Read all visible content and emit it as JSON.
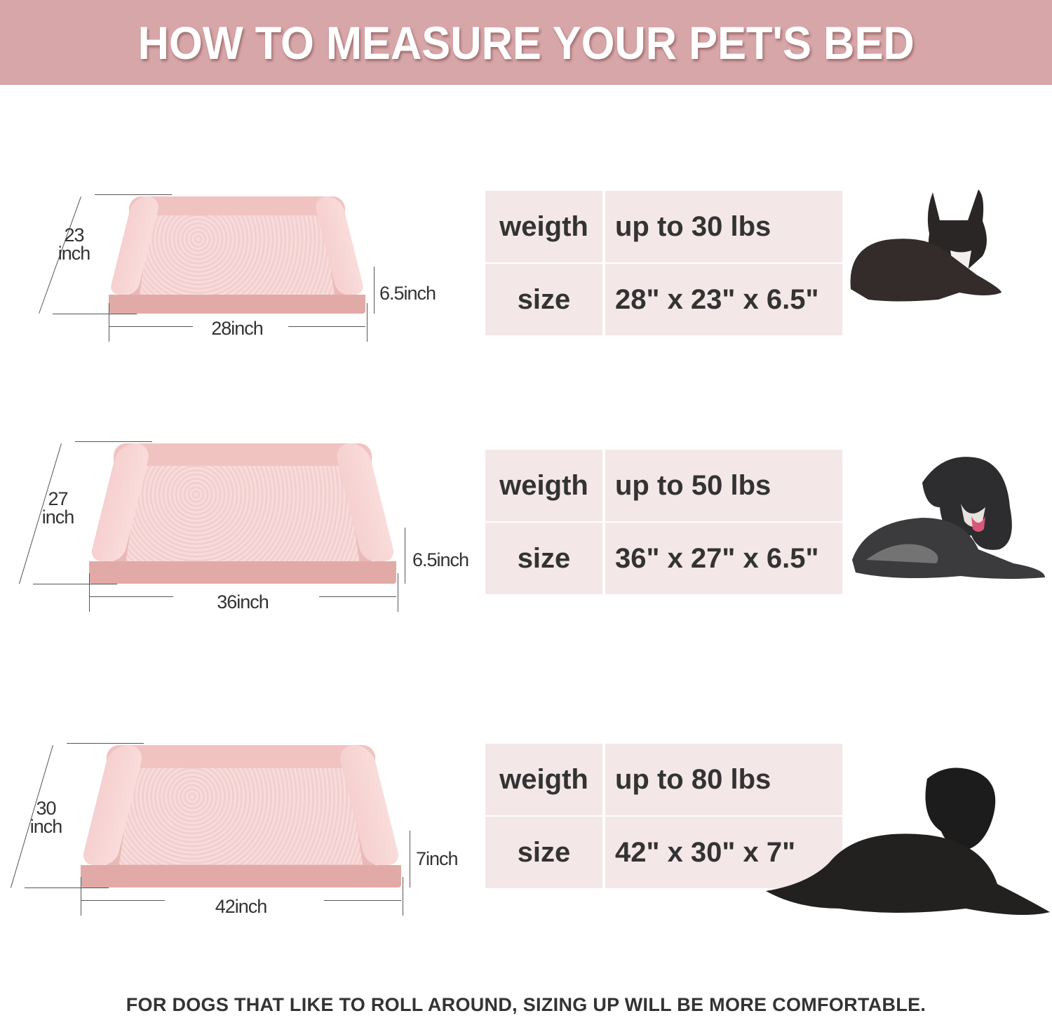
{
  "header": {
    "title": "HOW TO MEASURE YOUR PET'S BED"
  },
  "colors": {
    "header_bg": "#d7a6a8",
    "table_bg": "#f4e7e8",
    "bed_pink": "#eab9b7",
    "text": "#333333"
  },
  "sizes": [
    {
      "depth_value": "23",
      "depth_unit": "inch",
      "height_label": "6.5inch",
      "width_label": "28inch",
      "weight_label": "weigth",
      "weight_value": "up to 30 lbs",
      "size_label": "size",
      "size_value": "28\" x 23\" x 6.5\"",
      "dog": "french-bulldog"
    },
    {
      "depth_value": "27",
      "depth_unit": "inch",
      "height_label": "6.5inch",
      "width_label": "36inch",
      "weight_label": "weigth",
      "weight_value": "up to 50 lbs",
      "size_label": "size",
      "size_value": "36\" x 27\" x 6.5\"",
      "dog": "spaniel"
    },
    {
      "depth_value": "30",
      "depth_unit": "inch",
      "height_label": "7inch",
      "width_label": "42inch",
      "weight_label": "weigth",
      "weight_value": "up to 80 lbs",
      "size_label": "size",
      "size_value": "42\" x 30\" x 7\"",
      "dog": "labrador"
    }
  ],
  "footer": {
    "note": "FOR DOGS THAT LIKE TO ROLL AROUND, SIZING UP WILL BE MORE COMFORTABLE."
  }
}
